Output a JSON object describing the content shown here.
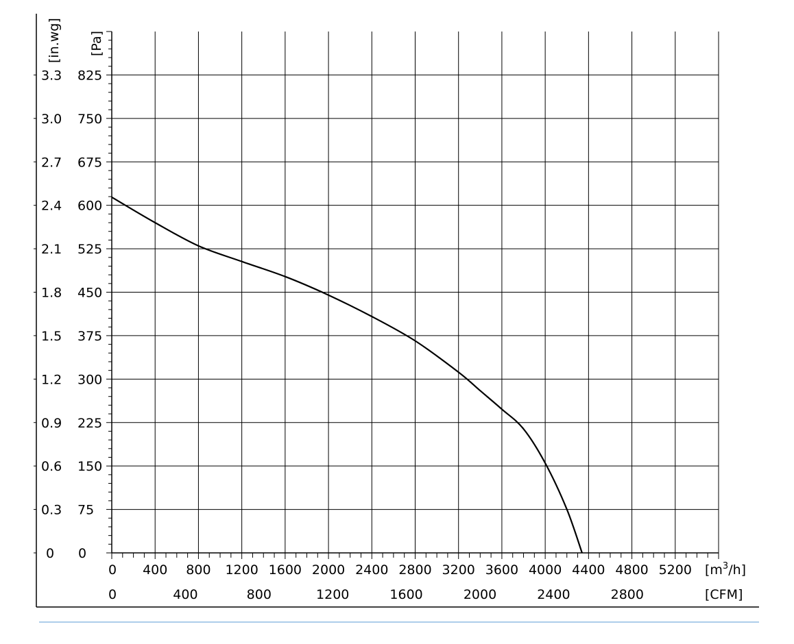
{
  "chart_data": {
    "type": "line",
    "title": "",
    "series": [
      {
        "x": [
          0,
          400,
          800,
          1200,
          1600,
          2000,
          2400,
          2800,
          3200,
          3400,
          3600,
          3800,
          4000,
          4200,
          4340
        ],
        "y": [
          614,
          570,
          530,
          503,
          477,
          445,
          408,
          366,
          312,
          280,
          248,
          214,
          155,
          75,
          0
        ],
        "color": "#000000"
      }
    ],
    "x_axis": {
      "unit_label_pre": "[m",
      "unit_label_sup": "3",
      "unit_label_post": "/h]",
      "range": [
        0,
        5600
      ],
      "tick_labels": [
        "0",
        "400",
        "800",
        "1200",
        "1600",
        "2000",
        "2400",
        "2800",
        "3200",
        "3600",
        "4000",
        "4400",
        "4800",
        "5200"
      ]
    },
    "x_axis_secondary": {
      "unit_label": "[CFM]",
      "tick_labels": [
        "0",
        "400",
        "800",
        "1200",
        "1600",
        "2000",
        "2400",
        "2800"
      ]
    },
    "y_axis": {
      "unit_label": "[Pa]",
      "range": [
        0,
        900
      ],
      "tick_labels": [
        "0",
        "75",
        "150",
        "225",
        "300",
        "375",
        "450",
        "525",
        "600",
        "675",
        "750",
        "825"
      ]
    },
    "y_axis_secondary": {
      "unit_label": "[in.wg]",
      "tick_labels": [
        "0",
        "0.3",
        "0.6",
        "0.9",
        "1.2",
        "1.5",
        "1.8",
        "2.1",
        "2.4",
        "2.7",
        "3.0",
        "3.3"
      ]
    },
    "grid": true,
    "legend": "none"
  },
  "colors": {
    "line": "#000000",
    "grid": "#000000",
    "footer_rule": "#5b9bd5"
  }
}
